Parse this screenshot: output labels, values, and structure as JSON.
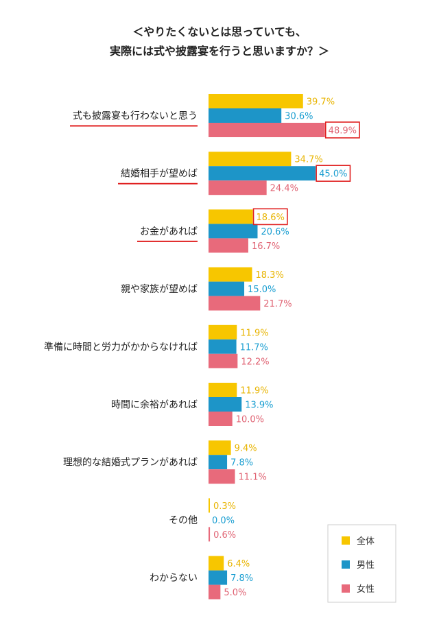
{
  "chart_data": {
    "type": "bar",
    "orientation": "horizontal",
    "title": [
      "＜やりたくないとは思っていても、",
      "実際には式や披露宴を行うと思いますか？＞"
    ],
    "categories": [
      "式も披露宴も行わないと思う",
      "結婚相手が望めば",
      "お金があれば",
      "親や家族が望めば",
      "準備に時間と労力がかからなければ",
      "時間に余裕があれば",
      "理想的な結婚式プランがあれば",
      "その他",
      "わからない"
    ],
    "underlined_categories": [
      0,
      1,
      2
    ],
    "series": [
      {
        "name": "全体",
        "color": "#f7c600",
        "label_color": "#e8b400",
        "values": [
          39.7,
          34.7,
          18.6,
          18.3,
          11.9,
          11.9,
          9.4,
          0.3,
          6.4
        ]
      },
      {
        "name": "男性",
        "color": "#1d95c8",
        "label_color": "#1a9ed1",
        "values": [
          30.6,
          45.0,
          20.6,
          15.0,
          11.7,
          13.9,
          7.8,
          0.0,
          7.8
        ]
      },
      {
        "name": "女性",
        "color": "#e86a7b",
        "label_color": "#e06373",
        "values": [
          48.9,
          24.4,
          16.7,
          21.7,
          12.2,
          10.0,
          11.1,
          0.6,
          5.0
        ]
      }
    ],
    "value_labels": [
      [
        "39.7%",
        "30.6%",
        "48.9%"
      ],
      [
        "34.7%",
        "45.0%",
        "24.4%"
      ],
      [
        "18.6%",
        "20.6%",
        "16.7%"
      ],
      [
        "18.3%",
        "15.0%",
        "21.7%"
      ],
      [
        "11.9%",
        "11.7%",
        "12.2%"
      ],
      [
        "11.9%",
        "13.9%",
        "10.0%"
      ],
      [
        "9.4%",
        "7.8%",
        "11.1%"
      ],
      [
        "0.3%",
        "0.0%",
        "0.6%"
      ],
      [
        "6.4%",
        "7.8%",
        "5.0%"
      ]
    ],
    "highlighted": [
      [
        0,
        2
      ],
      [
        1,
        1
      ],
      [
        2,
        0
      ]
    ],
    "highlight_color": "#e02020",
    "underline_color": "#e02020",
    "xlim": [
      0,
      50
    ],
    "grid": false,
    "legend_position": "bottom-right"
  }
}
